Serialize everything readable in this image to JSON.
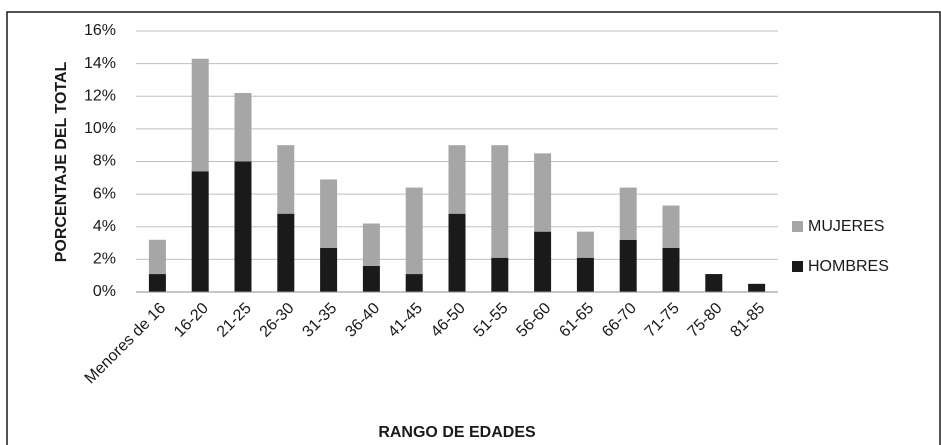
{
  "chart_data": {
    "type": "stacked_bar",
    "x_label": "RANGO DE EDADES",
    "y_label": "PORCENTAJE DEL TOTAL",
    "categories": [
      "Menores de 16",
      "16-20",
      "21-25",
      "26-30",
      "31-35",
      "36-40",
      "41-45",
      "46-50",
      "51-55",
      "56-60",
      "61-65",
      "66-70",
      "71-75",
      "75-80",
      "81-85"
    ],
    "series": [
      {
        "name": "HOMBRES",
        "color": "#1a1a1a",
        "values": [
          1.1,
          7.4,
          8.0,
          4.8,
          2.7,
          1.6,
          1.1,
          4.8,
          2.1,
          3.7,
          2.1,
          3.2,
          2.7,
          1.1,
          0.5
        ]
      },
      {
        "name": "MUJERES",
        "color": "#a6a6a6",
        "values": [
          2.1,
          6.9,
          4.2,
          4.2,
          4.2,
          2.6,
          5.3,
          4.2,
          6.9,
          4.8,
          1.6,
          3.2,
          2.6,
          0,
          0
        ]
      }
    ],
    "ylim": [
      0,
      16
    ],
    "yticks": [
      {
        "value": 0,
        "label": "0%"
      },
      {
        "value": 2,
        "label": "2%"
      },
      {
        "value": 4,
        "label": "4%"
      },
      {
        "value": 6,
        "label": "6%"
      },
      {
        "value": 8,
        "label": "8%"
      },
      {
        "value": 10,
        "label": "10%"
      },
      {
        "value": 12,
        "label": "12%"
      },
      {
        "value": 14,
        "label": "14%"
      },
      {
        "value": 16,
        "label": "16%"
      }
    ],
    "grid": true,
    "legend": "right"
  }
}
